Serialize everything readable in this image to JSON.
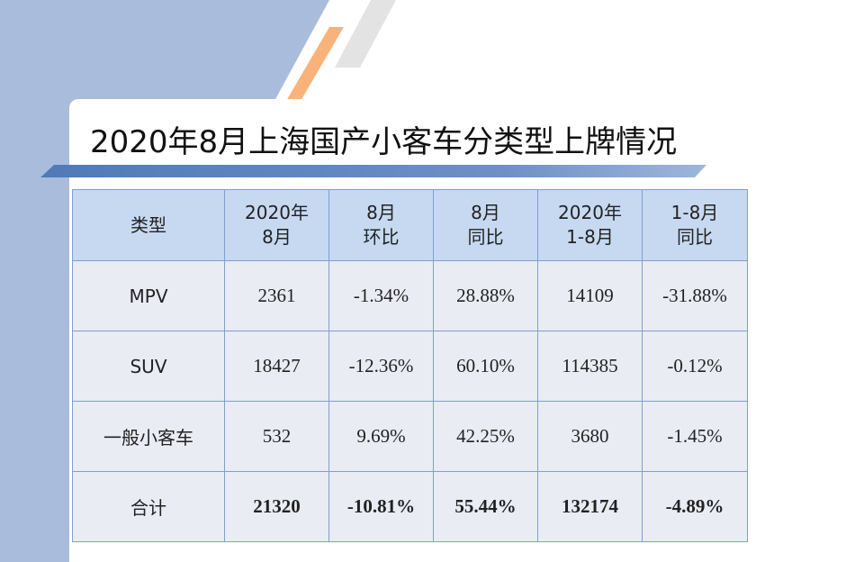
{
  "title": "2020年8月上海国产小客车分类型上牌情况",
  "table": {
    "header": [
      [
        "类型"
      ],
      [
        "2020年",
        "8月"
      ],
      [
        "8月",
        "环比"
      ],
      [
        "8月",
        "同比"
      ],
      [
        "2020年",
        "1-8月"
      ],
      [
        "1-8月",
        "同比"
      ]
    ],
    "rows": [
      [
        "MPV",
        "2361",
        "-1.34%",
        "28.88%",
        "14109",
        "-31.88%"
      ],
      [
        "SUV",
        "18427",
        "-12.36%",
        "60.10%",
        "114385",
        "-0.12%"
      ],
      [
        "一般小客车",
        "532",
        "9.69%",
        "42.25%",
        "3680",
        "-1.45%"
      ],
      [
        "合计",
        "21320",
        "-10.81%",
        "55.44%",
        "132174",
        "-4.89%"
      ]
    ]
  }
}
